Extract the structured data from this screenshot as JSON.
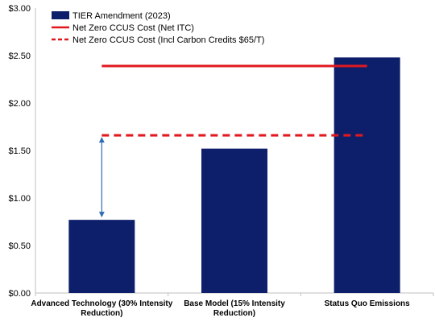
{
  "chart_data": {
    "type": "bar",
    "categories": [
      [
        "Advanced Technology (30% Intensity",
        "Reduction)"
      ],
      [
        "Base Model (15% Intensity",
        "Reduction)"
      ],
      [
        "Status Quo Emissions"
      ]
    ],
    "series": [
      {
        "name": "TIER Amendment (2023)",
        "values": [
          0.77,
          1.52,
          2.48
        ],
        "color": "#0d1f6b"
      }
    ],
    "reference_lines": [
      {
        "name": "Net Zero CCUS Cost  (Net ITC)",
        "value": 2.39,
        "style": "solid",
        "color": "#e0191e",
        "from_category": 0,
        "to_category": 2
      },
      {
        "name": "Net Zero CCUS Cost (Incl Carbon Credits $65/T)",
        "value": 1.66,
        "style": "dashed",
        "color": "#e0191e",
        "from_category": 0,
        "to_category": 2
      }
    ],
    "gap_arrow": {
      "category": 0,
      "from": 0.77,
      "to": 1.66,
      "color": "#2e6db4"
    },
    "ylim": [
      0,
      3
    ],
    "yticks": [
      "$0.00",
      "$0.50",
      "$1.00",
      "$1.50",
      "$2.00",
      "$2.50",
      "$3.00"
    ],
    "ytick_values": [
      0,
      0.5,
      1.0,
      1.5,
      2.0,
      2.5,
      3.0
    ],
    "grid": false,
    "legend_position": "top-left",
    "title": "",
    "xlabel": "",
    "ylabel": ""
  }
}
